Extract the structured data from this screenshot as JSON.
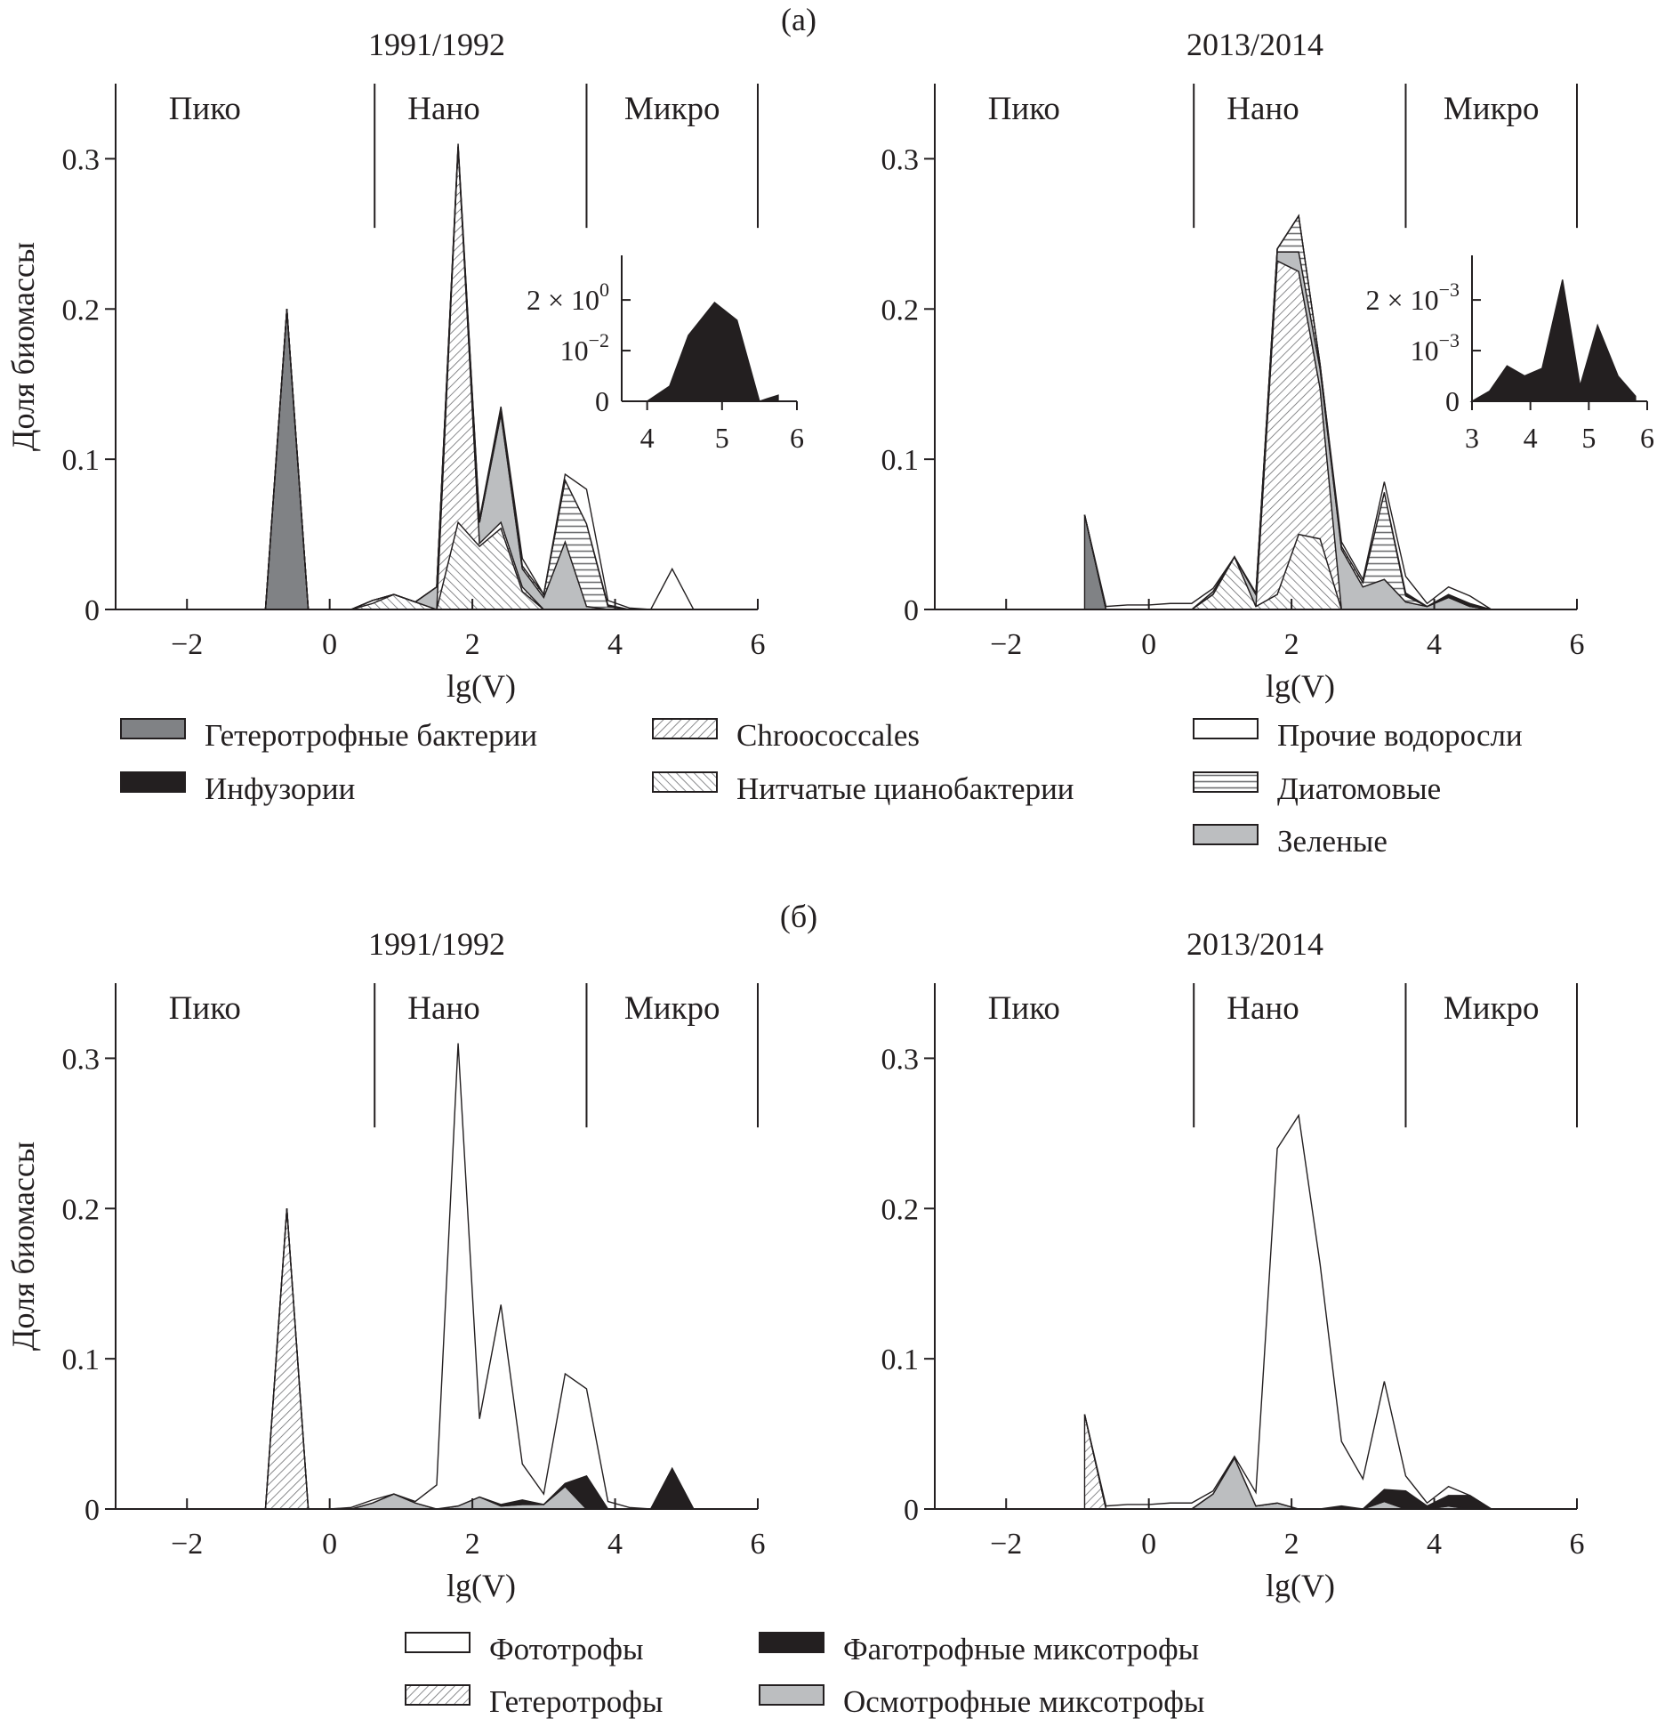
{
  "figure": {
    "panel_a_label": "(a)",
    "panel_b_label": "(б)"
  },
  "chart_data": [
    {
      "panel": "(a)",
      "type": "area",
      "stacked": true,
      "title": "1991/1992",
      "xlabel": "lg(V)",
      "ylabel": "Доля биомассы",
      "xlim": [
        -3,
        6
      ],
      "ylim": [
        0,
        0.35
      ],
      "xticks": [
        {
          "v": -2,
          "label": "−2"
        },
        {
          "v": 0,
          "label": "0"
        },
        {
          "v": 2,
          "label": "2"
        },
        {
          "v": 4,
          "label": "4"
        },
        {
          "v": 6,
          "label": "6"
        }
      ],
      "yticks": [
        {
          "v": 0,
          "label": "0"
        },
        {
          "v": 0.1,
          "label": "0.1"
        },
        {
          "v": 0.2,
          "label": "0.2"
        },
        {
          "v": 0.3,
          "label": "0.3"
        }
      ],
      "regions": [
        {
          "label": "Пико",
          "center": -1.75
        },
        {
          "label": "Нано",
          "center": 1.6
        },
        {
          "label": "Микро",
          "center": 4.8
        }
      ],
      "region_bounds": [
        0.63,
        3.6,
        6
      ],
      "x": [
        -0.9,
        -0.6,
        -0.3,
        0,
        0.3,
        0.6,
        0.9,
        1.2,
        1.5,
        1.8,
        2.1,
        2.4,
        2.7,
        3.0,
        3.3,
        3.6,
        3.9,
        4.2,
        4.5,
        4.8,
        5.1
      ],
      "series": [
        {
          "name": "Гетеротрофные бактерии",
          "values": [
            0,
            0.2,
            0,
            0,
            0,
            0,
            0,
            0,
            0,
            0,
            0,
            0,
            0,
            0,
            0,
            0,
            0,
            0,
            0,
            0,
            0
          ]
        },
        {
          "name": "Нитчатые цианобактерии",
          "values": [
            0,
            0,
            0,
            0,
            0,
            0.004,
            0.01,
            0.005,
            0,
            0.058,
            0.042,
            0.054,
            0.012,
            0,
            0,
            0,
            0,
            0,
            0,
            0,
            0
          ]
        },
        {
          "name": "Chroococcales",
          "values": [
            0,
            0,
            0,
            0,
            0,
            0.002,
            0,
            0,
            0,
            0.25,
            0.002,
            0.004,
            0.003,
            0,
            0,
            0,
            0,
            0,
            0,
            0,
            0
          ]
        },
        {
          "name": "Зеленые",
          "values": [
            0,
            0,
            0,
            0,
            0,
            0,
            0,
            0,
            0.015,
            0,
            0.014,
            0.072,
            0.012,
            0.008,
            0.045,
            0.002,
            0,
            0,
            0,
            0,
            0
          ]
        },
        {
          "name": "Диатомовые",
          "values": [
            0,
            0,
            0,
            0,
            0,
            0,
            0,
            0,
            0,
            0,
            0,
            0.002,
            0.002,
            0.002,
            0.041,
            0.055,
            0.002,
            0,
            0,
            0,
            0
          ]
        },
        {
          "name": "Инфузории",
          "values": [
            0,
            0,
            0,
            0,
            0,
            0,
            0,
            0,
            0,
            0,
            0,
            0,
            0,
            0,
            0,
            0,
            0.001,
            0,
            0,
            0,
            0
          ]
        },
        {
          "name": "Прочие водоросли",
          "values": [
            0,
            0,
            0,
            0,
            0,
            0,
            0,
            0,
            0,
            0.002,
            0.002,
            0.003,
            0.005,
            0,
            0.004,
            0.023,
            0.003,
            0.001,
            0,
            0.027,
            0
          ]
        }
      ],
      "inset": {
        "series_name": "Инфузории",
        "xlim": [
          3.66,
          6
        ],
        "ylim": [
          0,
          2.88
        ],
        "xticks": [
          {
            "v": 4,
            "label": "4"
          },
          {
            "v": 5,
            "label": "5"
          },
          {
            "v": 6,
            "label": "6"
          }
        ],
        "yticks": [
          {
            "v": 0,
            "text": "0",
            "sup": ""
          },
          {
            "v": 1,
            "text": "10",
            "sup": "−2"
          },
          {
            "v": 2,
            "text": "2 × 10",
            "sup": "0"
          }
        ],
        "x": [
          3.8,
          4.0,
          4.3,
          4.55,
          4.9,
          5.2,
          5.5,
          5.6,
          5.75
        ],
        "values": [
          0,
          0,
          0.3,
          1.3,
          1.95,
          1.6,
          0,
          0.05,
          0.12
        ]
      }
    },
    {
      "panel": "(a)",
      "type": "area",
      "stacked": true,
      "title": "2013/2014",
      "xlabel": "lg(V)",
      "ylabel": "",
      "xlim": [
        -3,
        6
      ],
      "ylim": [
        0,
        0.35
      ],
      "xticks": [
        {
          "v": -2,
          "label": "−2"
        },
        {
          "v": 0,
          "label": "0"
        },
        {
          "v": 2,
          "label": "2"
        },
        {
          "v": 4,
          "label": "4"
        },
        {
          "v": 6,
          "label": "6"
        }
      ],
      "yticks": [
        {
          "v": 0,
          "label": "0"
        },
        {
          "v": 0.1,
          "label": "0.1"
        },
        {
          "v": 0.2,
          "label": "0.2"
        },
        {
          "v": 0.3,
          "label": "0.3"
        }
      ],
      "regions": [
        {
          "label": "Пико",
          "center": -1.75
        },
        {
          "label": "Нано",
          "center": 1.6
        },
        {
          "label": "Микро",
          "center": 4.8
        }
      ],
      "region_bounds": [
        0.63,
        3.6,
        6
      ],
      "x": [
        -0.9,
        -0.6,
        -0.3,
        0,
        0.3,
        0.6,
        0.9,
        1.2,
        1.5,
        1.8,
        2.1,
        2.4,
        2.7,
        3.0,
        3.3,
        3.6,
        3.9,
        4.2,
        4.5,
        4.8,
        5.1
      ],
      "series": [
        {
          "name": "Гетеротрофные бактерии",
          "values": [
            0.063,
            0,
            0,
            0,
            0,
            0,
            0,
            0,
            0,
            0,
            0,
            0,
            0,
            0,
            0,
            0,
            0,
            0,
            0,
            0,
            0
          ]
        },
        {
          "name": "Нитчатые цианобактерии",
          "values": [
            0,
            0,
            0,
            0,
            0,
            0,
            0.01,
            0.035,
            0.002,
            0.01,
            0.05,
            0.047,
            0,
            0,
            0,
            0,
            0,
            0,
            0,
            0,
            0
          ]
        },
        {
          "name": "Chroococcales",
          "values": [
            0,
            0,
            0,
            0,
            0,
            0,
            0,
            0,
            0,
            0.222,
            0.175,
            0.1,
            0,
            0,
            0,
            0,
            0,
            0,
            0,
            0,
            0
          ]
        },
        {
          "name": "Зеленые",
          "values": [
            0,
            0,
            0,
            0,
            0,
            0,
            0.002,
            0,
            0.008,
            0.006,
            0.013,
            0.013,
            0.04,
            0.015,
            0.02,
            0.005,
            0.002,
            0.008,
            0.002,
            0,
            0
          ]
        },
        {
          "name": "Диатомовые",
          "values": [
            0,
            0,
            0,
            0,
            0,
            0,
            0,
            0,
            0,
            0.002,
            0.024,
            0.003,
            0.002,
            0.003,
            0.058,
            0.004,
            0,
            0,
            0,
            0,
            0
          ]
        },
        {
          "name": "Инфузории",
          "values": [
            0,
            0,
            0,
            0,
            0,
            0,
            0,
            0,
            0,
            0,
            0,
            0,
            0,
            0,
            0,
            0.002,
            0,
            0.002,
            0.002,
            0,
            0
          ]
        },
        {
          "name": "Прочие водоросли",
          "values": [
            0,
            0.002,
            0.003,
            0.003,
            0.004,
            0.004,
            0.002,
            0,
            0.001,
            0,
            0,
            0,
            0.003,
            0.002,
            0.007,
            0.011,
            0.002,
            0.005,
            0.005,
            0,
            0
          ]
        }
      ],
      "inset": {
        "series_name": "Инфузории",
        "xlim": [
          3,
          6
        ],
        "ylim": [
          0,
          2.88
        ],
        "xticks": [
          {
            "v": 3,
            "label": "3"
          },
          {
            "v": 4,
            "label": "4"
          },
          {
            "v": 5,
            "label": "5"
          },
          {
            "v": 6,
            "label": "6"
          }
        ],
        "yticks": [
          {
            "v": 0,
            "text": "0",
            "sup": ""
          },
          {
            "v": 1,
            "text": "10",
            "sup": "−3"
          },
          {
            "v": 2,
            "text": "2 × 10",
            "sup": "−3"
          }
        ],
        "x": [
          3.0,
          3.3,
          3.6,
          3.9,
          4.2,
          4.55,
          4.85,
          5.15,
          5.5,
          5.8
        ],
        "values": [
          0,
          0.2,
          0.7,
          0.5,
          0.65,
          2.4,
          0.3,
          1.5,
          0.5,
          0.1
        ]
      }
    },
    {
      "panel": "(б)",
      "type": "area",
      "stacked": true,
      "title": "1991/1992",
      "xlabel": "lg(V)",
      "ylabel": "Доля биомассы",
      "xlim": [
        -3,
        6
      ],
      "ylim": [
        0,
        0.35
      ],
      "xticks": [
        {
          "v": -2,
          "label": "−2"
        },
        {
          "v": 0,
          "label": "0"
        },
        {
          "v": 2,
          "label": "2"
        },
        {
          "v": 4,
          "label": "4"
        },
        {
          "v": 6,
          "label": "6"
        }
      ],
      "yticks": [
        {
          "v": 0,
          "label": "0"
        },
        {
          "v": 0.1,
          "label": "0.1"
        },
        {
          "v": 0.2,
          "label": "0.2"
        },
        {
          "v": 0.3,
          "label": "0.3"
        }
      ],
      "regions": [
        {
          "label": "Пико",
          "center": -1.75
        },
        {
          "label": "Нано",
          "center": 1.6
        },
        {
          "label": "Микро",
          "center": 4.8
        }
      ],
      "region_bounds": [
        0.63,
        3.6,
        6
      ],
      "x": [
        -0.9,
        -0.6,
        -0.3,
        0,
        0.3,
        0.6,
        0.9,
        1.2,
        1.5,
        1.8,
        2.1,
        2.4,
        2.7,
        3.0,
        3.3,
        3.6,
        3.9,
        4.2,
        4.5,
        4.8,
        5.1
      ],
      "series": [
        {
          "name": "Гетеротрофы",
          "values": [
            0,
            0.2,
            0,
            0,
            0,
            0,
            0,
            0,
            0,
            0,
            0,
            0,
            0,
            0,
            0,
            0,
            0,
            0,
            0,
            0,
            0
          ]
        },
        {
          "name": "Осмотрофные миксотрофы",
          "values": [
            0,
            0,
            0,
            0,
            0,
            0.004,
            0.01,
            0.004,
            0,
            0.002,
            0.008,
            0.002,
            0.003,
            0.003,
            0.015,
            0,
            0,
            0,
            0,
            0,
            0
          ]
        },
        {
          "name": "Фаготрофные миксотрофы",
          "values": [
            0,
            0,
            0,
            0,
            0,
            0,
            0,
            0,
            0,
            0,
            0,
            0.001,
            0.003,
            0,
            0.002,
            0.022,
            0,
            0,
            0,
            0.027,
            0
          ]
        },
        {
          "name": "Фототрофы",
          "values": [
            0,
            0,
            0,
            0,
            0.001,
            0.002,
            0,
            0.001,
            0.016,
            0.308,
            0.052,
            0.133,
            0.024,
            0.007,
            0.073,
            0.058,
            0.005,
            0.001,
            0,
            0,
            0
          ]
        }
      ]
    },
    {
      "panel": "(б)",
      "type": "area",
      "stacked": true,
      "title": "2013/2014",
      "xlabel": "lg(V)",
      "ylabel": "",
      "xlim": [
        -3,
        6
      ],
      "ylim": [
        0,
        0.35
      ],
      "xticks": [
        {
          "v": -2,
          "label": "−2"
        },
        {
          "v": 0,
          "label": "0"
        },
        {
          "v": 2,
          "label": "2"
        },
        {
          "v": 4,
          "label": "4"
        },
        {
          "v": 6,
          "label": "6"
        }
      ],
      "yticks": [
        {
          "v": 0,
          "label": "0"
        },
        {
          "v": 0.1,
          "label": "0.1"
        },
        {
          "v": 0.2,
          "label": "0.2"
        },
        {
          "v": 0.3,
          "label": "0.3"
        }
      ],
      "regions": [
        {
          "label": "Пико",
          "center": -1.75
        },
        {
          "label": "Нано",
          "center": 1.6
        },
        {
          "label": "Микро",
          "center": 4.8
        }
      ],
      "region_bounds": [
        0.63,
        3.6,
        6
      ],
      "x": [
        -0.9,
        -0.6,
        -0.3,
        0,
        0.3,
        0.6,
        0.9,
        1.2,
        1.5,
        1.8,
        2.1,
        2.4,
        2.7,
        3.0,
        3.3,
        3.6,
        3.9,
        4.2,
        4.5,
        4.8,
        5.1
      ],
      "series": [
        {
          "name": "Гетеротрофы",
          "values": [
            0.063,
            0,
            0,
            0,
            0,
            0,
            0,
            0,
            0,
            0,
            0,
            0,
            0,
            0,
            0,
            0,
            0,
            0,
            0,
            0,
            0
          ]
        },
        {
          "name": "Осмотрофные миксотрофы",
          "values": [
            0,
            0,
            0,
            0,
            0,
            0,
            0.01,
            0.034,
            0.002,
            0.004,
            0,
            0,
            0,
            0,
            0.005,
            0,
            0,
            0.002,
            0,
            0,
            0
          ]
        },
        {
          "name": "Фаготрофные миксотрофы",
          "values": [
            0,
            0,
            0,
            0,
            0,
            0,
            0,
            0,
            0,
            0,
            0,
            0,
            0.002,
            0,
            0.008,
            0.012,
            0.002,
            0.007,
            0.009,
            0,
            0
          ]
        },
        {
          "name": "Фототрофы",
          "values": [
            0,
            0.002,
            0.003,
            0.003,
            0.004,
            0.004,
            0.002,
            0.001,
            0.009,
            0.236,
            0.262,
            0.163,
            0.043,
            0.02,
            0.072,
            0.01,
            0.002,
            0.006,
            0,
            0,
            0
          ]
        }
      ]
    }
  ],
  "legends": {
    "a": [
      {
        "label": "Гетеротрофные бактерии",
        "fill": "#808285"
      },
      {
        "label": "Инфузории",
        "fill": "#231f20"
      },
      {
        "label": "Chroococcales",
        "pattern": "diagonal-forward"
      },
      {
        "label": "Нитчатые цианобактерии",
        "pattern": "diagonal-backward"
      },
      {
        "label": "Прочие водоросли",
        "fill": "#ffffff"
      },
      {
        "label": "Диатомовые",
        "pattern": "horizontal"
      },
      {
        "label": "Зеленые",
        "fill": "#bcbec0"
      }
    ],
    "b": [
      {
        "label": "Фототрофы",
        "fill": "#ffffff"
      },
      {
        "label": "Гетеротрофы",
        "pattern": "diagonal-forward"
      },
      {
        "label": "Фаготрофные миксотрофы",
        "fill": "#231f20"
      },
      {
        "label": "Осмотрофные миксотрофы",
        "fill": "#bcbec0"
      }
    ]
  }
}
